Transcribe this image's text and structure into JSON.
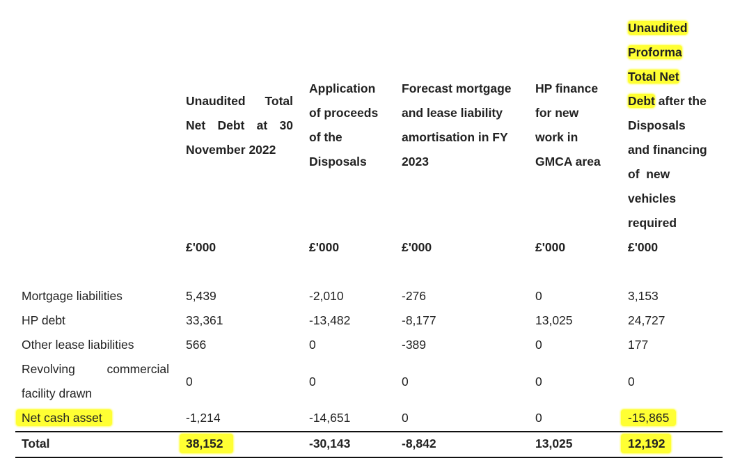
{
  "table": {
    "headers": {
      "col1": {
        "line1": [
          "Unaudited",
          "Total"
        ],
        "line2": [
          "Net",
          "Debt",
          "at",
          "30"
        ],
        "line3": "November 2022"
      },
      "col2": [
        "Application",
        "of proceeds",
        "of the",
        "Disposals"
      ],
      "col3": [
        "Forecast mortgage",
        "and lease liability",
        "amortisation in FY",
        "2023"
      ],
      "col4": [
        "HP finance",
        "for new",
        "work in",
        "GMCA area"
      ],
      "col5": {
        "line1": "Unaudited",
        "line2": "Proforma",
        "line3": "Total Net",
        "line4a": "Debt",
        "line4b": " after the",
        "line5": "Disposals",
        "line6": "and financing",
        "line7": "of  new",
        "line8": "vehicles",
        "line9": "required"
      }
    },
    "units": [
      "£'000",
      "£'000",
      "£'000",
      "£'000",
      "£'000"
    ],
    "rows": [
      {
        "label": "Mortgage liabilities",
        "values": [
          "5,439",
          "-2,010",
          "-276",
          "0",
          "3,153"
        ]
      },
      {
        "label": "HP debt",
        "values": [
          "33,361",
          "-13,482",
          "-8,177",
          "13,025",
          "24,727"
        ]
      },
      {
        "label": "Other lease liabilities",
        "values": [
          "566",
          "0",
          "-389",
          "0",
          "177"
        ]
      },
      {
        "label_line1": [
          "Revolving",
          "commercial"
        ],
        "label_line2": "facility drawn",
        "values": [
          "0",
          "0",
          "0",
          "0",
          "0"
        ]
      },
      {
        "label": "Net cash asset",
        "values": [
          "-1,214",
          "-14,651",
          "0",
          "0",
          "-15,865"
        ]
      }
    ],
    "total": {
      "label": "Total",
      "values": [
        "38,152",
        "-30,143",
        "-8,842",
        "13,025",
        "12,192"
      ]
    }
  },
  "colors": {
    "highlight": "#ffff33",
    "text": "#222222",
    "rule": "#111111"
  }
}
